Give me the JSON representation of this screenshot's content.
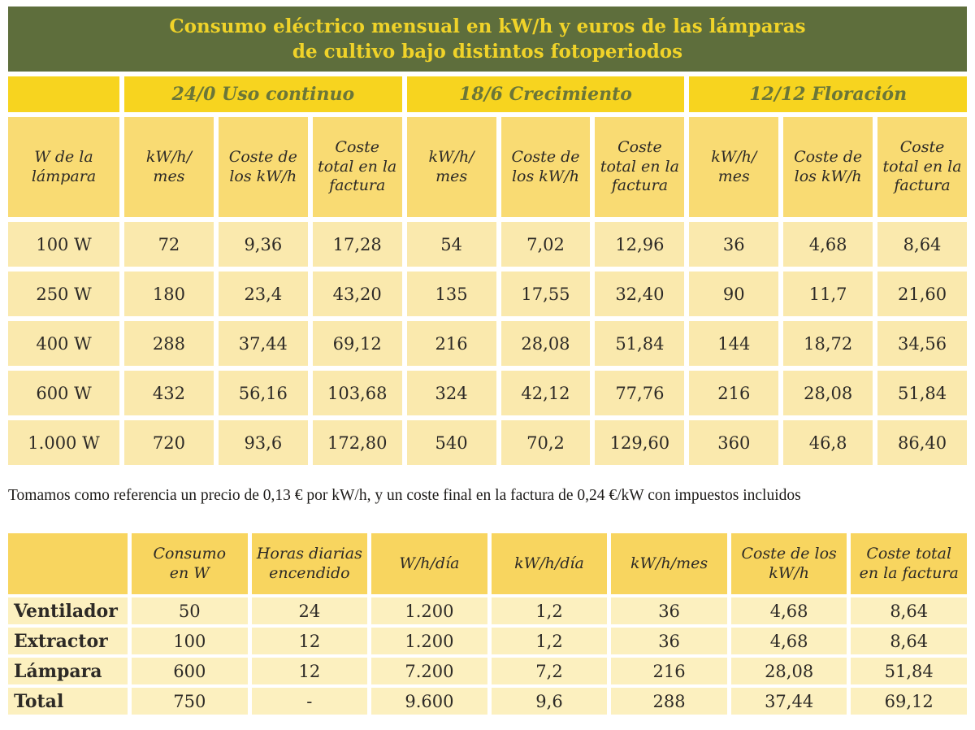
{
  "title": "Consumo eléctrico mensual en kW/h y euros de las lámparas\nde cultivo bajo distintos fotoperiodos",
  "table1": {
    "groups": [
      "24/0 Uso continuo",
      "18/6 Crecimiento",
      "12/12 Floración"
    ],
    "row_header": "W de la\nlámpara",
    "sub_headers": [
      "kW/h/\nmes",
      "Coste de\nlos kW/h",
      "Coste\ntotal en la\nfactura"
    ],
    "rows": [
      {
        "label": "100 W",
        "values": [
          "72",
          "9,36",
          "17,28",
          "54",
          "7,02",
          "12,96",
          "36",
          "4,68",
          "8,64"
        ]
      },
      {
        "label": "250 W",
        "values": [
          "180",
          "23,4",
          "43,20",
          "135",
          "17,55",
          "32,40",
          "90",
          "11,7",
          "21,60"
        ]
      },
      {
        "label": "400 W",
        "values": [
          "288",
          "37,44",
          "69,12",
          "216",
          "28,08",
          "51,84",
          "144",
          "18,72",
          "34,56"
        ]
      },
      {
        "label": "600 W",
        "values": [
          "432",
          "56,16",
          "103,68",
          "324",
          "42,12",
          "77,76",
          "216",
          "28,08",
          "51,84"
        ]
      },
      {
        "label": "1.000 W",
        "values": [
          "720",
          "93,6",
          "172,80",
          "540",
          "70,2",
          "129,60",
          "360",
          "46,8",
          "86,40"
        ]
      }
    ]
  },
  "note": "Tomamos como referencia un precio de 0,13 € por kW/h, y un coste final en la factura de 0,24 €/kW con impuestos incluidos",
  "table2": {
    "headers": [
      "",
      "Consumo\nen W",
      "Horas diarias\nencendido",
      "W/h/día",
      "kW/h/día",
      "kW/h/mes",
      "Coste de los\nkW/h",
      "Coste total\nen la factura"
    ],
    "rows": [
      {
        "label": "Ventilador",
        "values": [
          "50",
          "24",
          "1.200",
          "1,2",
          "36",
          "4,68",
          "8,64"
        ]
      },
      {
        "label": "Extractor",
        "values": [
          "100",
          "12",
          "1.200",
          "1,2",
          "36",
          "4,68",
          "8,64"
        ]
      },
      {
        "label": "Lámpara",
        "values": [
          "600",
          "12",
          "7.200",
          "7,2",
          "216",
          "28,08",
          "51,84"
        ]
      },
      {
        "label": "Total",
        "values": [
          "750",
          "-",
          "9.600",
          "9,6",
          "288",
          "37,44",
          "69,12"
        ]
      }
    ]
  },
  "colors": {
    "page_bg": "#FFFFFF",
    "olive_band": "#5E6E3C",
    "title_text": "#F0D329",
    "bright_yellow": "#F7D41F",
    "group_text": "#6B7638",
    "t1_header_bg": "#F9DB73",
    "t1_cell_bg": "#FAE9AD",
    "t2_header_bg": "#F8D55F",
    "t2_cell_bg": "#FCF0BF",
    "dark_text": "#2D2A26",
    "note_text": "#1E1C1A"
  }
}
